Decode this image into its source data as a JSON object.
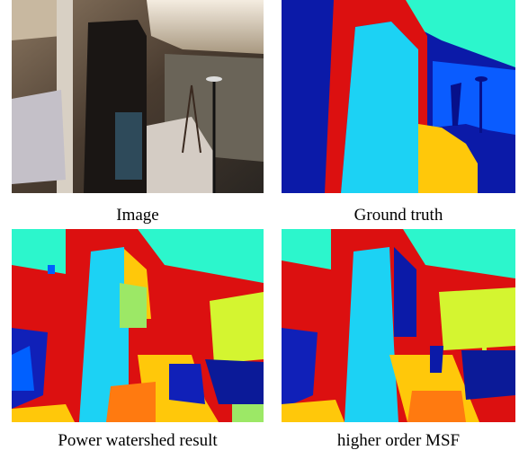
{
  "panels": [
    {
      "caption": "Image"
    },
    {
      "caption": "Ground truth"
    },
    {
      "caption": "Power watershed result"
    },
    {
      "caption": "higher order MSF"
    }
  ]
}
